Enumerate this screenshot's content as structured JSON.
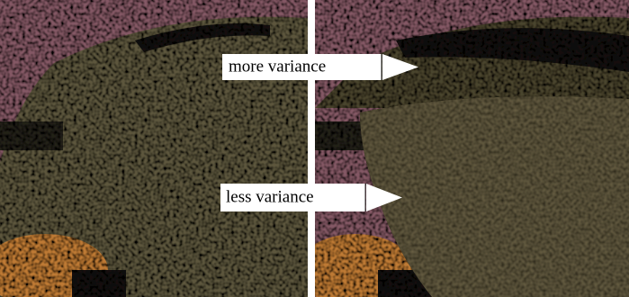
{
  "annotations": [
    {
      "label": "more variance"
    },
    {
      "label": "less variance"
    }
  ]
}
